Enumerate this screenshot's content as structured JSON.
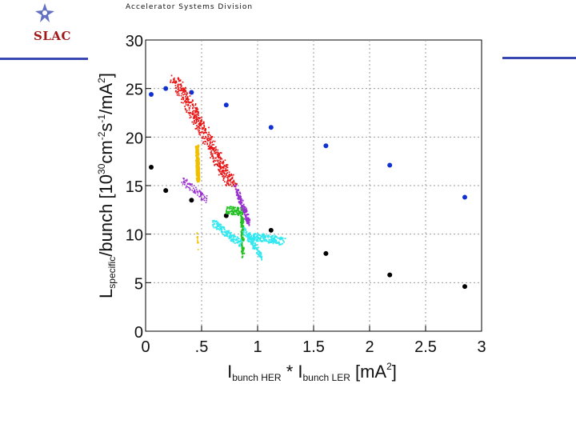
{
  "header": {
    "division": "Accelerator Systems Division",
    "logo_text": "SLAC"
  },
  "chart_data": {
    "type": "scatter",
    "title": "",
    "xlabel": {
      "main": "I",
      "sub1": "bunch HER",
      "mid": " * I",
      "sub2": "bunch LER",
      "tail": " [mA",
      "sup": "2",
      "end": "]"
    },
    "ylabel": {
      "main": "L",
      "sub": "specific",
      "mid": "/bunch [10",
      "sup1": "30",
      "mid2": "cm",
      "sup2": "-2",
      "mid3": "s",
      "sup3": "-1",
      "mid4": "/mA",
      "sup4": "2",
      "end": "]"
    },
    "xlim": [
      0,
      3
    ],
    "ylim": [
      0,
      30
    ],
    "xticks": [
      {
        "v": 0,
        "label": "0"
      },
      {
        "v": 0.5,
        "label": ".5"
      },
      {
        "v": 1,
        "label": "1"
      },
      {
        "v": 1.5,
        "label": "1.5"
      },
      {
        "v": 2,
        "label": "2"
      },
      {
        "v": 2.5,
        "label": "2.5"
      },
      {
        "v": 3,
        "label": "3"
      }
    ],
    "yticks": [
      {
        "v": 0,
        "label": "0"
      },
      {
        "v": 5,
        "label": "5"
      },
      {
        "v": 10,
        "label": "10"
      },
      {
        "v": 15,
        "label": "15"
      },
      {
        "v": 20,
        "label": "20"
      },
      {
        "v": 25,
        "label": "25"
      },
      {
        "v": 30,
        "label": "30"
      }
    ],
    "grid": true,
    "series": [
      {
        "name": "blue",
        "color": "#1030d0",
        "marker": "dot",
        "points": [
          [
            0.05,
            24.4
          ],
          [
            0.18,
            25.0
          ],
          [
            0.41,
            24.6
          ],
          [
            0.72,
            23.3
          ],
          [
            1.12,
            21.0
          ],
          [
            1.61,
            19.1
          ],
          [
            2.18,
            17.1
          ],
          [
            2.85,
            13.8
          ]
        ]
      },
      {
        "name": "black",
        "color": "#000000",
        "marker": "dot",
        "points": [
          [
            0.05,
            16.9
          ],
          [
            0.18,
            14.5
          ],
          [
            0.41,
            13.5
          ],
          [
            0.72,
            11.9
          ],
          [
            1.12,
            10.4
          ],
          [
            1.61,
            8.0
          ],
          [
            2.18,
            5.8
          ],
          [
            2.85,
            4.6
          ]
        ]
      },
      {
        "name": "red",
        "color": "#e81010",
        "marker": "cloud",
        "segments": [
          {
            "x0": 0.27,
            "y0": 26.0,
            "x1": 0.78,
            "y1": 14.8,
            "w": 0.05,
            "n": 520,
            "size": 1.7
          }
        ]
      },
      {
        "name": "yellow",
        "color": "#f0c000",
        "marker": "cloud",
        "segments": [
          {
            "x0": 0.46,
            "y0": 19.0,
            "x1": 0.47,
            "y1": 15.6,
            "w": 0.012,
            "n": 170,
            "size": 2.3
          },
          {
            "x0": 0.46,
            "y0": 10.0,
            "x1": 0.47,
            "y1": 8.8,
            "w": 0.004,
            "n": 12,
            "size": 1.6
          }
        ]
      },
      {
        "name": "purple",
        "color": "#9a30d0",
        "marker": "cloud",
        "segments": [
          {
            "x0": 0.33,
            "y0": 15.5,
            "x1": 0.55,
            "y1": 13.5,
            "w": 0.01,
            "n": 90,
            "size": 1.6
          },
          {
            "x0": 0.8,
            "y0": 14.8,
            "x1": 0.92,
            "y1": 11.2,
            "w": 0.015,
            "n": 150,
            "size": 1.9
          }
        ]
      },
      {
        "name": "green",
        "color": "#20c020",
        "marker": "cloud",
        "segments": [
          {
            "x0": 0.72,
            "y0": 12.5,
            "x1": 0.86,
            "y1": 12.3,
            "w": 0.008,
            "n": 80,
            "size": 1.9
          },
          {
            "x0": 0.86,
            "y0": 12.0,
            "x1": 0.87,
            "y1": 7.8,
            "w": 0.012,
            "n": 110,
            "size": 2.0
          }
        ]
      },
      {
        "name": "cyan",
        "color": "#30e8f0",
        "marker": "cloud",
        "segments": [
          {
            "x0": 0.6,
            "y0": 11.2,
            "x1": 0.85,
            "y1": 9.0,
            "w": 0.012,
            "n": 130,
            "size": 1.9
          },
          {
            "x0": 0.93,
            "y0": 9.8,
            "x1": 1.22,
            "y1": 9.3,
            "w": 0.03,
            "n": 170,
            "size": 1.9
          },
          {
            "x0": 0.88,
            "y0": 10.4,
            "x1": 1.04,
            "y1": 7.6,
            "w": 0.012,
            "n": 100,
            "size": 1.9
          }
        ]
      }
    ]
  }
}
